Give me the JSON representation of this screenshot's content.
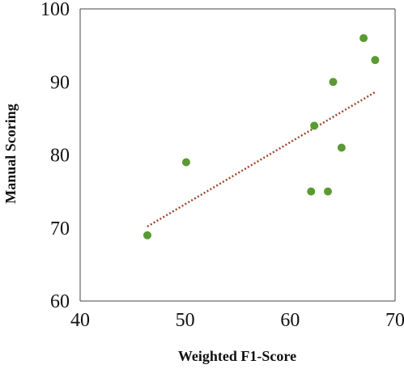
{
  "chart_data": {
    "type": "scatter",
    "title": "",
    "xlabel": "Weighted F1-Score",
    "ylabel": "Manual Scoring",
    "xlim": [
      40,
      70
    ],
    "ylim": [
      60,
      100
    ],
    "x_ticks": [
      "40",
      "50",
      "60",
      "70"
    ],
    "y_ticks": [
      "60",
      "70",
      "80",
      "90",
      "100"
    ],
    "grid": false,
    "legend": "none",
    "series": [
      {
        "points": [
          {
            "x": 46.4,
            "y": 69
          },
          {
            "x": 50.1,
            "y": 79
          },
          {
            "x": 62.0,
            "y": 75
          },
          {
            "x": 62.3,
            "y": 84
          },
          {
            "x": 63.6,
            "y": 75
          },
          {
            "x": 64.1,
            "y": 90
          },
          {
            "x": 64.9,
            "y": 81
          },
          {
            "x": 67.0,
            "y": 96
          },
          {
            "x": 68.1,
            "y": 93
          }
        ],
        "color": "#5a9a32"
      }
    ],
    "trendline": {
      "type": "linear",
      "style": "dotted",
      "color": "#a0482c",
      "x": [
        46.4,
        68.1
      ],
      "y": [
        70.2,
        88.6
      ]
    }
  }
}
